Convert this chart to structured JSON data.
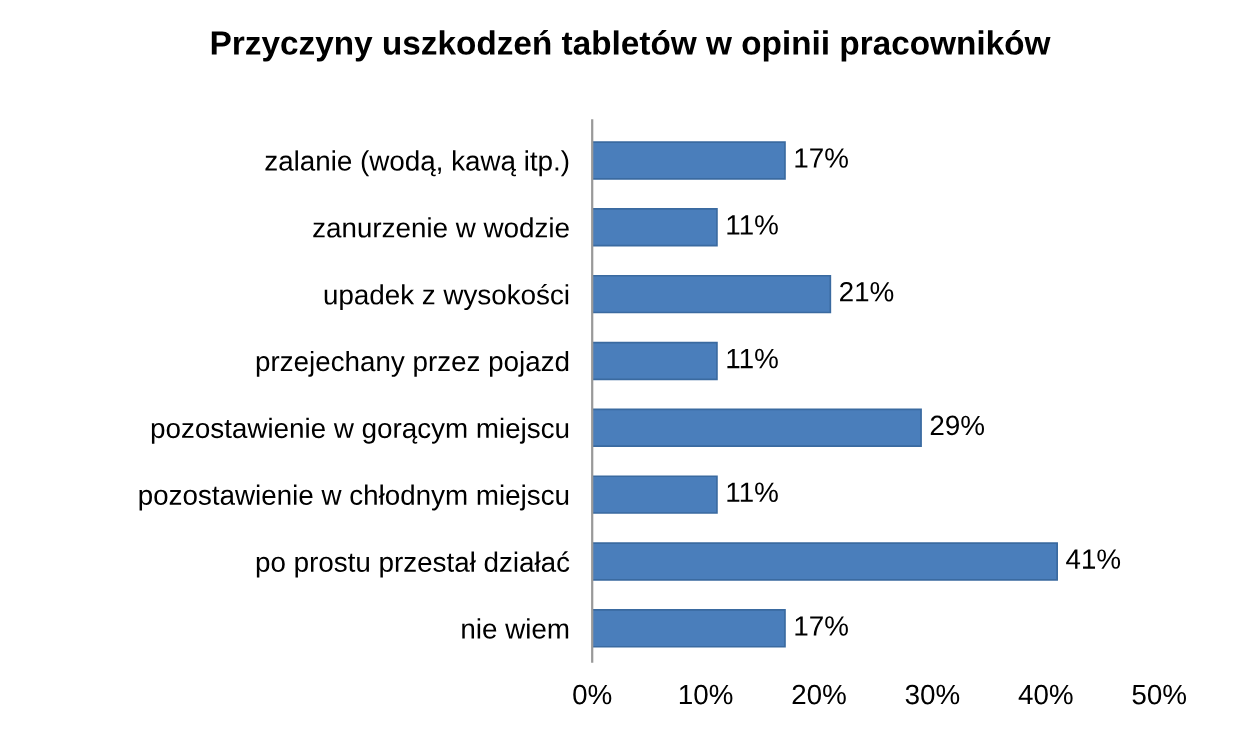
{
  "chart_data": {
    "type": "bar",
    "orientation": "horizontal",
    "title": "Przyczyny uszkodzeń tabletów w opinii pracowników",
    "categories": [
      "zalanie (wodą, kawą itp.)",
      "zanurzenie w wodzie",
      "upadek z wysokości",
      "przejechany przez pojazd",
      "pozostawienie w gorącym miejscu",
      "pozostawienie w chłodnym miejscu",
      "po prostu przestał działać",
      "nie wiem"
    ],
    "values": [
      17,
      11,
      21,
      11,
      29,
      11,
      41,
      17
    ],
    "value_labels": [
      "17%",
      "11%",
      "21%",
      "11%",
      "29%",
      "11%",
      "41%",
      "17%"
    ],
    "color": "#4a7ebb",
    "xlim": [
      0,
      50
    ],
    "xticks": [
      {
        "value": 0,
        "label": "0%"
      },
      {
        "value": 10,
        "label": "10%"
      },
      {
        "value": 20,
        "label": "20%"
      },
      {
        "value": 30,
        "label": "30%"
      },
      {
        "value": 40,
        "label": "40%"
      },
      {
        "value": 50,
        "label": "50%"
      }
    ],
    "grid": false,
    "legend": false
  }
}
